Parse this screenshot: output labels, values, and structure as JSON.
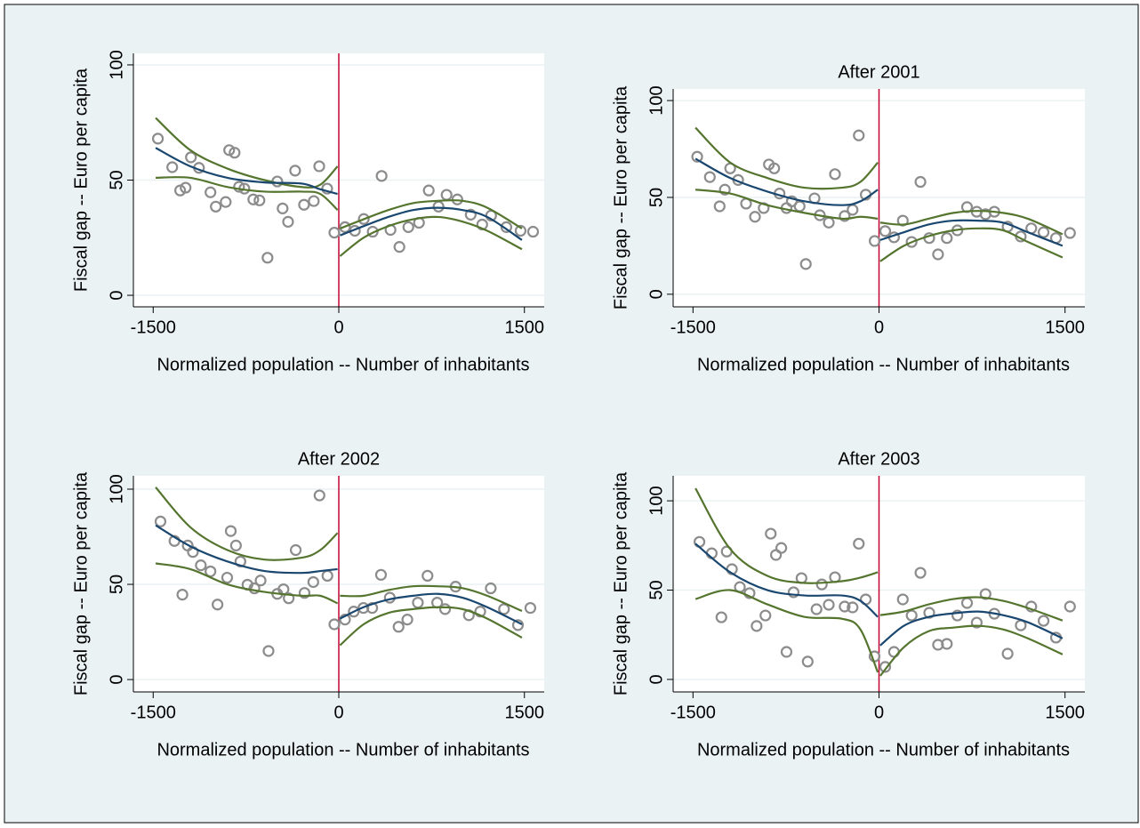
{
  "chart_data": [
    {
      "type": "scatter",
      "x_label": "Normalized population -- Number of inhabitants",
      "y_label": "Fiscal gap -- Euro per capita",
      "xlim": [
        -1660,
        1660
      ],
      "ylim": [
        -5,
        105
      ],
      "xticks": [
        -1500,
        0,
        1500
      ],
      "yticks": [
        0,
        50,
        100
      ],
      "grid": true,
      "cutoff": 0,
      "cutoff_color": "#c10534",
      "series": [
        {
          "kind": "scatter",
          "color": "#8c8c8c",
          "x": [
            -1462,
            -1346,
            -1282,
            -1238,
            -1195,
            -1130,
            -1037,
            -994,
            -914,
            -886,
            -842,
            -806,
            -763,
            -691,
            -641,
            -576,
            -497,
            -454,
            -410,
            -353,
            -281,
            -202,
            -158,
            -94,
            -36,
            50,
            130,
            202,
            274,
            346,
            418,
            490,
            562,
            648,
            727,
            806,
            871,
            958,
            1066,
            1159,
            1231,
            1354,
            1469,
            1570
          ],
          "values": [
            68,
            55.6,
            45.5,
            46.7,
            59.9,
            55.3,
            44.7,
            38.5,
            40.5,
            63,
            61.9,
            47.1,
            46.3,
            41.6,
            41.2,
            16.3,
            49.4,
            37.7,
            31.9,
            54.1,
            39.3,
            40.9,
            56,
            46.3,
            27.2,
            29.6,
            28,
            33.1,
            27.6,
            51.8,
            28.4,
            21,
            29.6,
            31.5,
            45.5,
            38.5,
            43.6,
            41.6,
            35,
            30.7,
            34.6,
            29.6,
            28,
            27.6
          ]
        },
        {
          "kind": "line",
          "color": "#55752f",
          "x": [
            -1480,
            -1200,
            -900,
            -600,
            -300,
            -150,
            -10
          ],
          "values": [
            77,
            63,
            55,
            50,
            47,
            48,
            56
          ]
        },
        {
          "kind": "line",
          "color": "#55752f",
          "x": [
            -1480,
            -1200,
            -900,
            -600,
            -300,
            -150,
            -10
          ],
          "values": [
            51,
            51,
            47,
            45,
            45,
            44,
            37
          ]
        },
        {
          "kind": "line",
          "color": "#1a476f",
          "x": [
            -1480,
            -1200,
            -900,
            -600,
            -300,
            -150,
            -10
          ],
          "values": [
            64,
            56,
            51,
            49,
            48.5,
            46,
            44
          ]
        },
        {
          "kind": "line",
          "color": "#55752f",
          "x": [
            10,
            200,
            400,
            600,
            800,
            1000,
            1200,
            1480
          ],
          "values": [
            29,
            33,
            37,
            40,
            41,
            41,
            38,
            29
          ]
        },
        {
          "kind": "line",
          "color": "#55752f",
          "x": [
            10,
            200,
            400,
            600,
            800,
            1000,
            1200,
            1480
          ],
          "values": [
            17,
            25,
            30,
            33,
            34,
            32,
            28,
            20
          ]
        },
        {
          "kind": "line",
          "color": "#1a476f",
          "x": [
            10,
            200,
            400,
            600,
            800,
            1000,
            1200,
            1480
          ],
          "values": [
            26,
            30,
            34,
            37,
            38,
            37,
            34,
            24
          ]
        }
      ]
    },
    {
      "type": "scatter",
      "title": "After 2001",
      "x_label": "Normalized population -- Number of inhabitants",
      "y_label": "Fiscal gap -- Euro per capita",
      "xlim": [
        -1660,
        1660
      ],
      "ylim": [
        -6.5,
        106
      ],
      "xticks": [
        -1500,
        0,
        1500
      ],
      "yticks": [
        0,
        50,
        100
      ],
      "grid": true,
      "cutoff": 0,
      "cutoff_color": "#c10534",
      "series": [
        {
          "kind": "scatter",
          "color": "#8c8c8c",
          "x": [
            -1466,
            -1364,
            -1285,
            -1243,
            -1200,
            -1136,
            -1072,
            -1000,
            -930,
            -888,
            -845,
            -802,
            -746,
            -703,
            -640,
            -590,
            -520,
            -477,
            -405,
            -355,
            -277,
            -213,
            -163,
            -107,
            -35,
            50,
            121,
            192,
            263,
            334,
            405,
            476,
            547,
            632,
            710,
            788,
            859,
            930,
            1037,
            1143,
            1228,
            1327,
            1427,
            1540
          ],
          "values": [
            71,
            60.5,
            45.4,
            54,
            65,
            59,
            46.8,
            40,
            44.5,
            67,
            65,
            52,
            44.5,
            48,
            45.4,
            15.6,
            49.5,
            40.8,
            37,
            62,
            40.4,
            43.6,
            82,
            51.4,
            27.5,
            32.6,
            29.4,
            38,
            27,
            58,
            29,
            20.6,
            29,
            33,
            45,
            42.6,
            41.3,
            42.6,
            34.9,
            29.8,
            34,
            32,
            29,
            31.6
          ]
        },
        {
          "kind": "line",
          "color": "#55752f",
          "x": [
            -1480,
            -1200,
            -900,
            -600,
            -300,
            -150,
            -10
          ],
          "values": [
            86,
            68,
            60,
            55,
            55,
            58,
            68
          ]
        },
        {
          "kind": "line",
          "color": "#55752f",
          "x": [
            -1480,
            -1200,
            -900,
            -600,
            -300,
            -150,
            -10
          ],
          "values": [
            54,
            52,
            46,
            42,
            39,
            40,
            39
          ]
        },
        {
          "kind": "line",
          "color": "#1a476f",
          "x": [
            -1480,
            -1200,
            -900,
            -600,
            -300,
            -150,
            -10
          ],
          "values": [
            70,
            60,
            53,
            48,
            46,
            48,
            54
          ]
        },
        {
          "kind": "line",
          "color": "#55752f",
          "x": [
            10,
            200,
            400,
            600,
            800,
            1000,
            1200,
            1480
          ],
          "values": [
            37,
            36,
            39,
            42,
            43,
            42,
            39,
            31
          ]
        },
        {
          "kind": "line",
          "color": "#55752f",
          "x": [
            10,
            200,
            400,
            600,
            800,
            1000,
            1200,
            1480
          ],
          "values": [
            17,
            25,
            30,
            33,
            34,
            33,
            27,
            19
          ]
        },
        {
          "kind": "line",
          "color": "#1a476f",
          "x": [
            10,
            200,
            400,
            600,
            800,
            1000,
            1200,
            1480
          ],
          "values": [
            28,
            32,
            36,
            38,
            38,
            37,
            32,
            25
          ]
        }
      ]
    },
    {
      "type": "scatter",
      "title": "After 2002",
      "x_label": "Normalized population -- Number of inhabitants",
      "y_label": "Fiscal gap -- Euro per capita",
      "xlim": [
        -1660,
        1660
      ],
      "ylim": [
        -6.5,
        107
      ],
      "xticks": [
        -1500,
        0,
        1500
      ],
      "yticks": [
        0,
        50,
        100
      ],
      "grid": true,
      "cutoff": 0,
      "cutoff_color": "#c10534",
      "series": [
        {
          "kind": "scatter",
          "color": "#8c8c8c",
          "x": [
            -1441,
            -1328,
            -1264,
            -1221,
            -1179,
            -1115,
            -1037,
            -980,
            -902,
            -873,
            -831,
            -795,
            -738,
            -682,
            -632,
            -568,
            -497,
            -447,
            -405,
            -348,
            -277,
            -206,
            -156,
            -92,
            -36,
            50,
            121,
            199,
            270,
            341,
            412,
            483,
            554,
            639,
            717,
            795,
            859,
            944,
            1051,
            1143,
            1228,
            1335,
            1448,
            1548
          ],
          "values": [
            83,
            72.8,
            44.6,
            70.4,
            67,
            60,
            56.8,
            39.4,
            53.5,
            78,
            70.4,
            62,
            49.8,
            47.9,
            52,
            15,
            45,
            47.4,
            42.7,
            68,
            45.5,
            51.2,
            96.7,
            54.5,
            29,
            31.5,
            35.7,
            37.6,
            37.6,
            55,
            43,
            27.7,
            31.5,
            40.4,
            54.5,
            40.4,
            37,
            48.8,
            33.8,
            35.7,
            47.9,
            37,
            28.6,
            37.6
          ]
        },
        {
          "kind": "line",
          "color": "#55752f",
          "x": [
            -1480,
            -1200,
            -900,
            -600,
            -300,
            -150,
            -10
          ],
          "values": [
            101,
            80,
            68,
            63,
            64,
            68,
            77
          ]
        },
        {
          "kind": "line",
          "color": "#55752f",
          "x": [
            -1480,
            -1200,
            -900,
            -600,
            -300,
            -150,
            -10
          ],
          "values": [
            61,
            58,
            50,
            46,
            44,
            44,
            40
          ]
        },
        {
          "kind": "line",
          "color": "#1a476f",
          "x": [
            -1480,
            -1200,
            -900,
            -600,
            -300,
            -150,
            -10
          ],
          "values": [
            81,
            70,
            62,
            57,
            56,
            57,
            58
          ]
        },
        {
          "kind": "line",
          "color": "#55752f",
          "x": [
            10,
            200,
            400,
            600,
            800,
            1000,
            1200,
            1480
          ],
          "values": [
            44,
            44,
            47,
            49,
            49,
            48,
            44,
            36
          ]
        },
        {
          "kind": "line",
          "color": "#55752f",
          "x": [
            10,
            200,
            400,
            600,
            800,
            1000,
            1200,
            1480
          ],
          "values": [
            18,
            29,
            35,
            37,
            38,
            37,
            32,
            22
          ]
        },
        {
          "kind": "line",
          "color": "#1a476f",
          "x": [
            10,
            200,
            400,
            600,
            800,
            1000,
            1200,
            1480
          ],
          "values": [
            32,
            38,
            42,
            44,
            45,
            43,
            38,
            29
          ]
        }
      ]
    },
    {
      "type": "scatter",
      "title": "After 2003",
      "x_label": "Normalized population -- Number of inhabitants",
      "y_label": "Fiscal gap -- Euro per capita",
      "xlim": [
        -1660,
        1660
      ],
      "ylim": [
        -7,
        114
      ],
      "xticks": [
        -1500,
        0,
        1500
      ],
      "yticks": [
        0,
        50,
        100
      ],
      "grid": true,
      "cutoff": 0,
      "cutoff_color": "#c10534",
      "series": [
        {
          "kind": "scatter",
          "color": "#8c8c8c",
          "x": [
            -1448,
            -1349,
            -1271,
            -1228,
            -1186,
            -1122,
            -1044,
            -987,
            -916,
            -873,
            -831,
            -788,
            -746,
            -689,
            -625,
            -575,
            -504,
            -461,
            -405,
            -355,
            -277,
            -213,
            -163,
            -107,
            -36,
            50,
            121,
            192,
            263,
            334,
            405,
            476,
            547,
            632,
            710,
            788,
            859,
            930,
            1037,
            1143,
            1228,
            1327,
            1427,
            1540
          ],
          "values": [
            77,
            70.6,
            34.8,
            71.6,
            61.7,
            51.7,
            48.3,
            29.9,
            35.8,
            81.6,
            69.7,
            73.6,
            15.4,
            48.8,
            56.7,
            10,
            39.3,
            53.2,
            41.8,
            57.2,
            40.8,
            40.3,
            76,
            44.8,
            12.9,
            7,
            15.4,
            44.8,
            35.8,
            59.7,
            37.3,
            19.4,
            19.9,
            35.8,
            42.8,
            31.8,
            47.8,
            36.8,
            14.4,
            30.3,
            40.8,
            32.8,
            23.4,
            40.8
          ]
        },
        {
          "kind": "line",
          "color": "#55752f",
          "x": [
            -1480,
            -1200,
            -900,
            -600,
            -300,
            -150,
            -10
          ],
          "values": [
            107,
            73,
            58,
            54,
            55,
            57,
            60
          ]
        },
        {
          "kind": "line",
          "color": "#55752f",
          "x": [
            -1480,
            -1200,
            -900,
            -600,
            -300,
            -150,
            -10
          ],
          "values": [
            45,
            50,
            42,
            35,
            34,
            28,
            4
          ]
        },
        {
          "kind": "line",
          "color": "#1a476f",
          "x": [
            -1480,
            -1200,
            -900,
            -600,
            -300,
            -150,
            -10
          ],
          "values": [
            76,
            60,
            50,
            47,
            47,
            44,
            35
          ]
        },
        {
          "kind": "line",
          "color": "#55752f",
          "x": [
            10,
            200,
            400,
            600,
            800,
            1000,
            1200,
            1480
          ],
          "values": [
            36,
            38,
            42,
            45,
            46,
            44,
            40,
            33
          ]
        },
        {
          "kind": "line",
          "color": "#55752f",
          "x": [
            10,
            200,
            400,
            600,
            800,
            1000,
            1200,
            1480
          ],
          "values": [
            2,
            18,
            27,
            29,
            30,
            28,
            23,
            14
          ]
        },
        {
          "kind": "line",
          "color": "#1a476f",
          "x": [
            10,
            200,
            400,
            600,
            800,
            1000,
            1200,
            1480
          ],
          "values": [
            19,
            30,
            35,
            37,
            38,
            36,
            32,
            23
          ]
        }
      ]
    }
  ]
}
